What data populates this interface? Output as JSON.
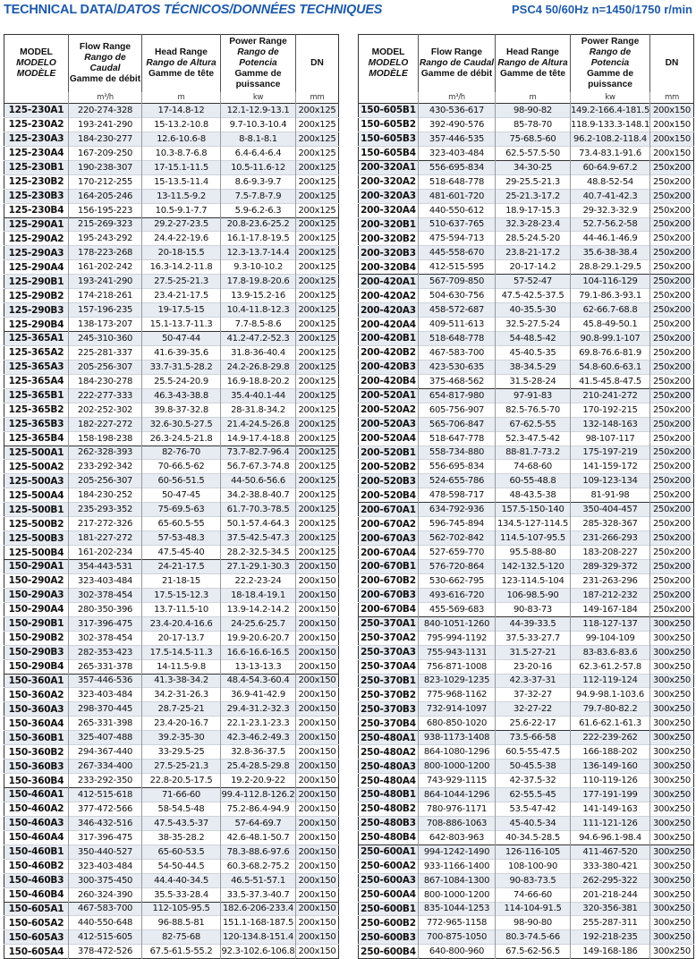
{
  "header": {
    "title_main": "TECHNICAL DATA/",
    "title_italic": "DATOS TÉCNICOS/DONNÉES TECHNIQUES",
    "subtitle": "PSC4  50/60Hz  n=1450/1750 r/min"
  },
  "columns": [
    {
      "en": "MODEL",
      "es": "MODELO",
      "fr": "MODÈLE",
      "unit": ""
    },
    {
      "en": "Flow Range",
      "es": "Rango de Caudal",
      "fr": "Gamme de débit",
      "unit": "m³/h"
    },
    {
      "en": "Head Range",
      "es": "Rango de Altura",
      "fr": "Gamme de tête",
      "unit": "m"
    },
    {
      "en": "Power Range",
      "es": "Rango de Potencia",
      "fr": "Gamme de puissance",
      "unit": "kw"
    },
    {
      "en": "DN",
      "es": "",
      "fr": "",
      "unit": "mm"
    }
  ],
  "left": {
    "rows": [
      [
        "125-230A1",
        "220-274-328",
        "17-14.8-12",
        "12.1-12.9-13.1",
        "200x125"
      ],
      [
        "125-230A2",
        "193-241-290",
        "15-13.2-10.8",
        "9.7-10.3-10.4",
        "200x125"
      ],
      [
        "125-230A3",
        "184-230-277",
        "12.6-10.6-8",
        "8-8.1-8.1",
        "200x125"
      ],
      [
        "125-230A4",
        "167-209-250",
        "10.3-8.7-6.8",
        "6.4-6.4-6.4",
        "200x125"
      ],
      [
        "125-230B1",
        "190-238-307",
        "17-15.1-11.5",
        "10.5-11.6-12",
        "200x125"
      ],
      [
        "125-230B2",
        "170-212-255",
        "15-13.5-11.4",
        "8.6-9.3-9.7",
        "200x125"
      ],
      [
        "125-230B3",
        "164-205-246",
        "13-11.5-9.2",
        "7.5-7.8-7.9",
        "200x125"
      ],
      [
        "125-230B4",
        "156-195-223",
        "10.5-9.1-7.7",
        "5.9-6.2-6.3",
        "200x125"
      ],
      [
        "125-290A1",
        "215-269-323",
        "29.2-27-23.5",
        "20.8-23.6-25.2",
        "200x125"
      ],
      [
        "125-290A2",
        "195-243-292",
        "24.4-22-19.6",
        "16.1-17.8-19.5",
        "200x125"
      ],
      [
        "125-290A3",
        "178-223-268",
        "20-18-15.5",
        "12.3-13.7-14.4",
        "200x125"
      ],
      [
        "125-290A4",
        "161-202-242",
        "16.3-14.2-11.8",
        "9.3-10-10.2",
        "200x125"
      ],
      [
        "125-290B1",
        "193-241-290",
        "27.5-25-21.3",
        "17.8-19.8-20.6",
        "200x125"
      ],
      [
        "125-290B2",
        "174-218-261",
        "23.4-21-17.5",
        "13.9-15.2-16",
        "200x125"
      ],
      [
        "125-290B3",
        "157-196-235",
        "19-17.5-15",
        "10.4-11.8-12.3",
        "200x125"
      ],
      [
        "125-290B4",
        "138-173-207",
        "15.1-13.7-11.3",
        "7.7-8.5-8.6",
        "200x125"
      ],
      [
        "125-365A1",
        "245-310-360",
        "50-47-44",
        "41.2-47.2-52.3",
        "200x125"
      ],
      [
        "125-365A2",
        "225-281-337",
        "41.6-39-35.6",
        "31.8-36-40.4",
        "200x125"
      ],
      [
        "125-365A3",
        "205-256-307",
        "33.7-31.5-28.2",
        "24.2-26.8-29.8",
        "200x125"
      ],
      [
        "125-365A4",
        "184-230-278",
        "25.5-24-20.9",
        "16.9-18.8-20.2",
        "200x125"
      ],
      [
        "125-365B1",
        "222-277-333",
        "46.3-43-38.8",
        "35.4-40.1-44",
        "200x125"
      ],
      [
        "125-365B2",
        "202-252-302",
        "39.8-37-32.8",
        "28-31.8-34.2",
        "200x125"
      ],
      [
        "125-365B3",
        "182-227-272",
        "32.6-30.5-27.5",
        "21.4-24.5-26.8",
        "200x125"
      ],
      [
        "125-365B4",
        "158-198-238",
        "26.3-24.5-21.8",
        "14.9-17.4-18.8",
        "200x125"
      ],
      [
        "125-500A1",
        "262-328-393",
        "82-76-70",
        "73.7-82.7-96.4",
        "200x125"
      ],
      [
        "125-500A2",
        "233-292-342",
        "70-66.5-62",
        "56.7-67.3-74.8",
        "200x125"
      ],
      [
        "125-500A3",
        "205-256-307",
        "60-56-51.5",
        "44-50.6-56.6",
        "200x125"
      ],
      [
        "125-500A4",
        "184-230-252",
        "50-47-45",
        "34.2-38.8-40.7",
        "200x125"
      ],
      [
        "125-500B1",
        "235-293-352",
        "75-69.5-63",
        "61.7-70.3-78.5",
        "200x125"
      ],
      [
        "125-500B2",
        "217-272-326",
        "65-60.5-55",
        "50.1-57.4-64.3",
        "200x125"
      ],
      [
        "125-500B3",
        "181-227-272",
        "57-53-48.3",
        "37.5-42.5-47.3",
        "200x125"
      ],
      [
        "125-500B4",
        "161-202-234",
        "47.5-45-40",
        "28.2-32.5-34.5",
        "200x125"
      ],
      [
        "150-290A1",
        "354-443-531",
        "24-21-17.5",
        "27.1-29.1-30.3",
        "200x150"
      ],
      [
        "150-290A2",
        "323-403-484",
        "21-18-15",
        "22.2-23-24",
        "200x150"
      ],
      [
        "150-290A3",
        "302-378-454",
        "17.5-15-12.3",
        "18-18.4-19.1",
        "200x150"
      ],
      [
        "150-290A4",
        "280-350-396",
        "13.7-11.5-10",
        "13.9-14.2-14.2",
        "200x150"
      ],
      [
        "150-290B1",
        "317-396-475",
        "23.4-20.4-16.6",
        "24-25.6-25.7",
        "200x150"
      ],
      [
        "150-290B2",
        "302-378-454",
        "20-17-13.7",
        "19.9-20.6-20.7",
        "200x150"
      ],
      [
        "150-290B3",
        "282-353-423",
        "17.5-14.5-11.3",
        "16.6-16.6-16.5",
        "200x150"
      ],
      [
        "150-290B4",
        "265-331-378",
        "14-11.5-9.8",
        "13-13-13.3",
        "200x150"
      ],
      [
        "150-360A1",
        "357-446-536",
        "41.3-38-34.2",
        "48.4-54.3-60.4",
        "200x150"
      ],
      [
        "150-360A2",
        "323-403-484",
        "34.2-31-26.3",
        "36.9-41-42.9",
        "200x150"
      ],
      [
        "150-360A3",
        "298-370-445",
        "28.7-25-21",
        "29.4-31.2-32.3",
        "200x150"
      ],
      [
        "150-360A4",
        "265-331-398",
        "23.4-20-16.7",
        "22.1-23.1-23.3",
        "200x150"
      ],
      [
        "150-360B1",
        "325-407-488",
        "39.2-35-30",
        "42.3-46.2-49.3",
        "200x150"
      ],
      [
        "150-360B2",
        "294-367-440",
        "33-29.5-25",
        "32.8-36-37.5",
        "200x150"
      ],
      [
        "150-360B3",
        "267-334-400",
        "27.5-25-21.3",
        "25.4-28.5-29.8",
        "200x150"
      ],
      [
        "150-360B4",
        "233-292-350",
        "22.8-20.5-17.5",
        "19.2-20.9-22",
        "200x150"
      ],
      [
        "150-460A1",
        "412-515-618",
        "71-66-60",
        "99.4-112.8-126.2",
        "200x150"
      ],
      [
        "150-460A2",
        "377-472-566",
        "58-54.5-48",
        "75.2-86.4-94.9",
        "200x150"
      ],
      [
        "150-460A3",
        "346-432-516",
        "47.5-43.5-37",
        "57-64-69.7",
        "200x150"
      ],
      [
        "150-460A4",
        "317-396-475",
        "38-35-28.2",
        "42.6-48.1-50.7",
        "200x150"
      ],
      [
        "150-460B1",
        "350-440-527",
        "65-60-53.5",
        "78.3-88.6-97.6",
        "200x150"
      ],
      [
        "150-460B2",
        "323-403-484",
        "54-50-44.5",
        "60.3-68.2-75.2",
        "200x150"
      ],
      [
        "150-460B3",
        "300-375-450",
        "44.4-40-34.5",
        "46.5-51-57.1",
        "200x150"
      ],
      [
        "150-460B4",
        "260-324-390",
        "35.5-33-28.4",
        "33.5-37.3-40.7",
        "200x150"
      ],
      [
        "150-605A1",
        "467-583-700",
        "112-105-95.5",
        "182.6-206-233.4",
        "200x150"
      ],
      [
        "150-605A2",
        "440-550-648",
        "96-88.5-81",
        "151.1-168-187.5",
        "200x150"
      ],
      [
        "150-605A3",
        "412-515-605",
        "82-75-68",
        "120-134.8-151.4",
        "200x150"
      ],
      [
        "150-605A4",
        "378-472-526",
        "67.5-61.5-55.2",
        "92.3-102.6-106.8",
        "200x150"
      ]
    ]
  },
  "right": {
    "rows": [
      [
        "150-605B1",
        "430-536-617",
        "98-90-82",
        "149.2-166.4-181.5",
        "200x150"
      ],
      [
        "150-605B2",
        "392-490-576",
        "85-78-70",
        "118.9-133.3-148.1",
        "200x150"
      ],
      [
        "150-605B3",
        "357-446-535",
        "75-68.5-60",
        "96.2-108.2-118.4",
        "200x150"
      ],
      [
        "150-605B4",
        "323-403-484",
        "62.5-57.5-50",
        "73.4-83.1-91.6",
        "200x150"
      ],
      [
        "200-320A1",
        "556-695-834",
        "34-30-25",
        "60-64.9-67.2",
        "250x200"
      ],
      [
        "200-320A2",
        "518-648-778",
        "29-25.5-21.3",
        "48.8-52-54",
        "250x200"
      ],
      [
        "200-320A3",
        "481-601-720",
        "25-21.3-17.2",
        "40.7-41-42.3",
        "250x200"
      ],
      [
        "200-320A4",
        "440-550-612",
        "18.9-17-15.3",
        "29-32.3-32.9",
        "250x200"
      ],
      [
        "200-320B1",
        "510-637-765",
        "32.3-28-23.4",
        "52.7-56.2-58",
        "250x200"
      ],
      [
        "200-320B2",
        "475-594-713",
        "28.5-24.5-20",
        "44-46.1-46.9",
        "250x200"
      ],
      [
        "200-320B3",
        "445-558-670",
        "23.8-21-17.2",
        "35.6-38-38.4",
        "250x200"
      ],
      [
        "200-320B4",
        "412-515-595",
        "20-17-14.2",
        "28.8-29.1-29.5",
        "250x200"
      ],
      [
        "200-420A1",
        "567-709-850",
        "57-52-47",
        "104-116-129",
        "250x200"
      ],
      [
        "200-420A2",
        "504-630-756",
        "47.5-42.5-37.5",
        "79.1-86.3-93.1",
        "250x200"
      ],
      [
        "200-420A3",
        "458-572-687",
        "40-35.5-30",
        "62-66.7-68.8",
        "250x200"
      ],
      [
        "200-420A4",
        "409-511-613",
        "32.5-27.5-24",
        "45.8-49-50.1",
        "250x200"
      ],
      [
        "200-420B1",
        "518-648-778",
        "54-48.5-42",
        "90.8-99.1-107",
        "250x200"
      ],
      [
        "200-420B2",
        "467-583-700",
        "45-40.5-35",
        "69.8-76.6-81.9",
        "250x200"
      ],
      [
        "200-420B3",
        "423-530-635",
        "38-34.5-29",
        "54.8-60.6-63.1",
        "250x200"
      ],
      [
        "200-420B4",
        "375-468-562",
        "31.5-28-24",
        "41.5-45.8-47.5",
        "250x200"
      ],
      [
        "200-520A1",
        "654-817-980",
        "97-91-83",
        "210-241-272",
        "250x200"
      ],
      [
        "200-520A2",
        "605-756-907",
        "82.5-76.5-70",
        "170-192-215",
        "250x200"
      ],
      [
        "200-520A3",
        "565-706-847",
        "67-62.5-55",
        "132-148-163",
        "250x200"
      ],
      [
        "200-520A4",
        "518-647-778",
        "52.3-47.5-42",
        "98-107-117",
        "250x200"
      ],
      [
        "200-520B1",
        "558-734-880",
        "88-81.7-73.2",
        "175-197-219",
        "250x200"
      ],
      [
        "200-520B2",
        "556-695-834",
        "74-68-60",
        "141-159-172",
        "250x200"
      ],
      [
        "200-520B3",
        "524-655-786",
        "60-55-48.8",
        "109-123-134",
        "250x200"
      ],
      [
        "200-520B4",
        "478-598-717",
        "48-43.5-38",
        "81-91-98",
        "250x200"
      ],
      [
        "200-670A1",
        "634-792-936",
        "157.5-150-140",
        "350-404-457",
        "250x200"
      ],
      [
        "200-670A2",
        "596-745-894",
        "134.5-127-114.5",
        "285-328-367",
        "250x200"
      ],
      [
        "200-670A3",
        "562-702-842",
        "114.5-107-95.5",
        "231-266-293",
        "250x200"
      ],
      [
        "200-670A4",
        "527-659-770",
        "95.5-88-80",
        "183-208-227",
        "250x200"
      ],
      [
        "200-670B1",
        "576-720-864",
        "142-132.5-120",
        "289-329-372",
        "250x200"
      ],
      [
        "200-670B2",
        "530-662-795",
        "123-114.5-104",
        "231-263-296",
        "250x200"
      ],
      [
        "200-670B3",
        "493-616-720",
        "106-98.5-90",
        "187-212-232",
        "250x200"
      ],
      [
        "200-670B4",
        "455-569-683",
        "90-83-73",
        "149-167-184",
        "250x200"
      ],
      [
        "250-370A1",
        "840-1051-1260",
        "44-39-33.5",
        "118-127-137",
        "300x250"
      ],
      [
        "250-370A2",
        "795-994-1192",
        "37.5-33-27.7",
        "99-104-109",
        "300x250"
      ],
      [
        "250-370A3",
        "755-943-1131",
        "31.5-27-21",
        "83-83.6-83.6",
        "300x250"
      ],
      [
        "250-370A4",
        "756-871-1008",
        "23-20-16",
        "62.3-61.2-57.8",
        "300x250"
      ],
      [
        "250-370B1",
        "823-1029-1235",
        "42.3-37-31",
        "112-119-124",
        "300x250"
      ],
      [
        "250-370B2",
        "775-968-1162",
        "37-32-27",
        "94.9-98.1-103.6",
        "300x250"
      ],
      [
        "250-370B3",
        "732-914-1097",
        "32-27-22",
        "79.7-80-82.2",
        "300x250"
      ],
      [
        "250-370B4",
        "680-850-1020",
        "25.6-22-17",
        "61.6-62.1-61.3",
        "300x250"
      ],
      [
        "250-480A1",
        "938-1173-1408",
        "73.5-66-58",
        "222-239-262",
        "300x250"
      ],
      [
        "250-480A2",
        "864-1080-1296",
        "60.5-55-47.5",
        "166-188-202",
        "300x250"
      ],
      [
        "250-480A3",
        "800-1000-1200",
        "50-45.5-38",
        "136-149-160",
        "300x250"
      ],
      [
        "250-480A4",
        "743-929-1115",
        "42-37.5-32",
        "110-119-126",
        "300x250"
      ],
      [
        "250-480B1",
        "864-1044-1296",
        "62-55.5-45",
        "177-191-199",
        "300x250"
      ],
      [
        "250-480B2",
        "780-976-1171",
        "53.5-47-42",
        "141-149-163",
        "300x250"
      ],
      [
        "250-480B3",
        "708-886-1063",
        "45-40.5-34",
        "111-121-126",
        "300x250"
      ],
      [
        "250-480B4",
        "642-803-963",
        "40-34.5-28.5",
        "94.6-96.1-98.4",
        "300x250"
      ],
      [
        "250-600A1",
        "994-1242-1490",
        "126-116-105",
        "411-467-520",
        "300x250"
      ],
      [
        "250-600A2",
        "933-1166-1400",
        "108-100-90",
        "333-380-421",
        "300x250"
      ],
      [
        "250-600A3",
        "867-1084-1300",
        "90-83-73.5",
        "262-295-322",
        "300x250"
      ],
      [
        "250-600A4",
        "800-1000-1200",
        "74-66-60",
        "201-218-244",
        "300x250"
      ],
      [
        "250-600B1",
        "835-1044-1253",
        "114-104-91.5",
        "320-356-381",
        "300x250"
      ],
      [
        "250-600B2",
        "772-965-1158",
        "98-90-80",
        "255-287-311",
        "300x250"
      ],
      [
        "250-600B3",
        "700-875-1050",
        "80.3-74.5-66",
        "192-218-235",
        "300x250"
      ],
      [
        "250-600B4",
        "640-800-960",
        "67.5-62-56.5",
        "149-168-186",
        "300x250"
      ]
    ]
  },
  "colors": {
    "title": "#1e5aa8",
    "row_alt": "#e7ebf2"
  }
}
